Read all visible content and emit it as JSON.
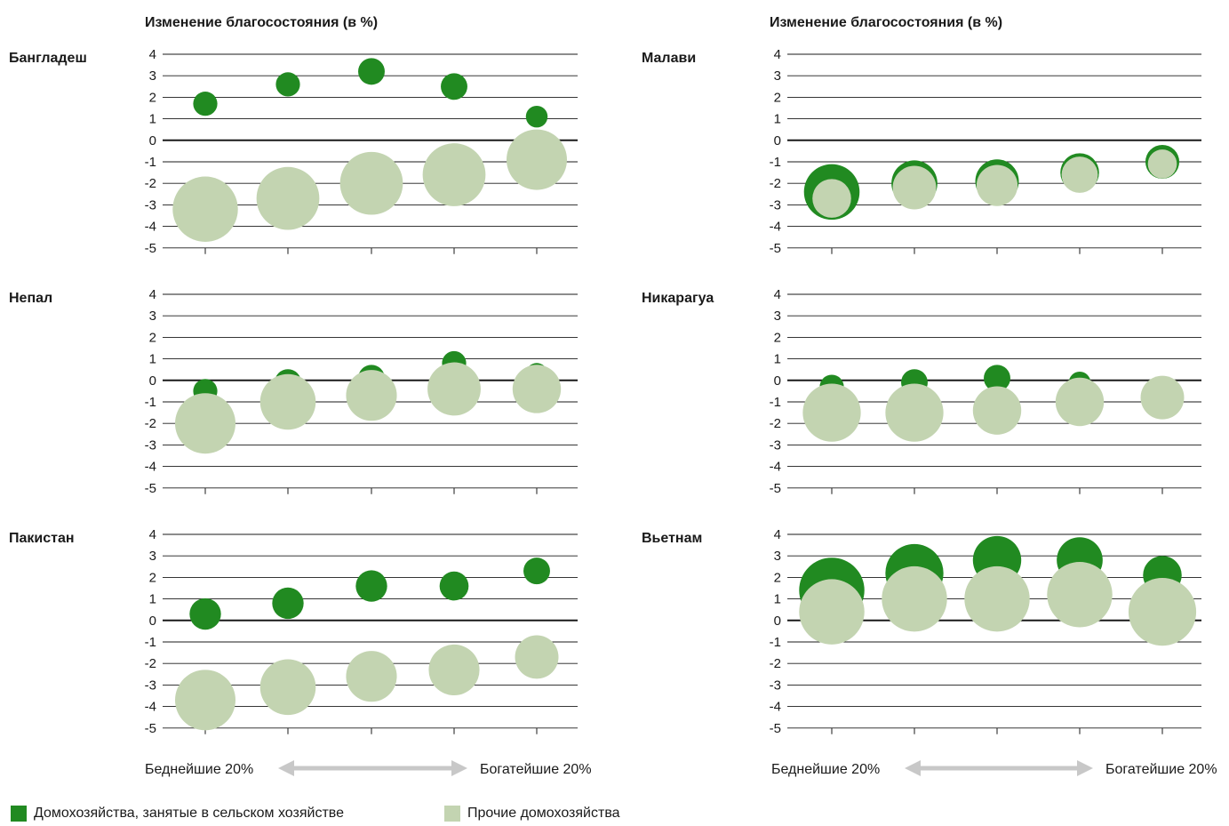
{
  "chart_data": {
    "type": "scatter",
    "column_titles": [
      "Изменение благосостояния (в %)",
      "Изменение благосостояния (в %)"
    ],
    "y_ticks": [
      "4",
      "3",
      "2",
      "1",
      "0",
      "-1",
      "-2",
      "-3",
      "-4",
      "-5"
    ],
    "ylim": [
      -5,
      4
    ],
    "x_categories": [
      "Беднейшие 20%",
      "",
      "",
      "",
      "Богатейшие 20%"
    ],
    "x_axis_left_label": "Беднейшие 20%",
    "x_axis_right_label": "Богатейшие 20%",
    "series_names": [
      "Домохозяйства, занятые в сельском хозяйстве",
      "Прочие домохозяйства"
    ],
    "colors": {
      "agri": "#218a21",
      "other": "#c3d4b1",
      "grid": "#1a1a1a",
      "arrow": "#c8c8c8"
    },
    "legend_position": "bottom-left",
    "panels": [
      {
        "country": "Бангладеш",
        "agri": [
          {
            "y": 1.7,
            "size": 1.0
          },
          {
            "y": 2.6,
            "size": 1.0
          },
          {
            "y": 3.2,
            "size": 1.1
          },
          {
            "y": 2.5,
            "size": 1.1
          },
          {
            "y": 1.1,
            "size": 0.9
          }
        ],
        "other": [
          {
            "y": -3.2,
            "size": 2.7
          },
          {
            "y": -2.7,
            "size": 2.6
          },
          {
            "y": -2.0,
            "size": 2.6
          },
          {
            "y": -1.6,
            "size": 2.6
          },
          {
            "y": -0.9,
            "size": 2.5
          }
        ]
      },
      {
        "country": "Малави",
        "agri": [
          {
            "y": -2.4,
            "size": 2.3
          },
          {
            "y": -2.0,
            "size": 1.9
          },
          {
            "y": -1.9,
            "size": 1.8
          },
          {
            "y": -1.5,
            "size": 1.6
          },
          {
            "y": -1.0,
            "size": 1.4
          }
        ],
        "other": [
          {
            "y": -2.7,
            "size": 1.6
          },
          {
            "y": -2.2,
            "size": 1.8
          },
          {
            "y": -2.1,
            "size": 1.7
          },
          {
            "y": -1.6,
            "size": 1.5
          },
          {
            "y": -1.1,
            "size": 1.2
          }
        ]
      },
      {
        "country": "Непал",
        "agri": [
          {
            "y": -0.5,
            "size": 1.0
          },
          {
            "y": -0.1,
            "size": 1.1
          },
          {
            "y": 0.1,
            "size": 1.1
          },
          {
            "y": 0.8,
            "size": 1.0
          },
          {
            "y": 0.3,
            "size": 0.9
          }
        ],
        "other": [
          {
            "y": -2.0,
            "size": 2.5
          },
          {
            "y": -1.0,
            "size": 2.3
          },
          {
            "y": -0.7,
            "size": 2.1
          },
          {
            "y": -0.4,
            "size": 2.2
          },
          {
            "y": -0.4,
            "size": 2.0
          }
        ]
      },
      {
        "country": "Никарагуа",
        "agri": [
          {
            "y": -0.3,
            "size": 1.0
          },
          {
            "y": -0.1,
            "size": 1.1
          },
          {
            "y": 0.1,
            "size": 1.1
          },
          {
            "y": -0.1,
            "size": 0.9
          },
          {
            "y": -0.3,
            "size": 0.7
          }
        ],
        "other": [
          {
            "y": -1.5,
            "size": 2.4
          },
          {
            "y": -1.5,
            "size": 2.4
          },
          {
            "y": -1.4,
            "size": 2.0
          },
          {
            "y": -1.0,
            "size": 2.0
          },
          {
            "y": -0.8,
            "size": 1.8
          }
        ]
      },
      {
        "country": "Пакистан",
        "agri": [
          {
            "y": 0.3,
            "size": 1.3
          },
          {
            "y": 0.8,
            "size": 1.3
          },
          {
            "y": 1.6,
            "size": 1.3
          },
          {
            "y": 1.6,
            "size": 1.2
          },
          {
            "y": 2.3,
            "size": 1.1
          }
        ],
        "other": [
          {
            "y": -3.7,
            "size": 2.5
          },
          {
            "y": -3.1,
            "size": 2.3
          },
          {
            "y": -2.6,
            "size": 2.1
          },
          {
            "y": -2.3,
            "size": 2.1
          },
          {
            "y": -1.7,
            "size": 1.8
          }
        ]
      },
      {
        "country": "Вьетнам",
        "agri": [
          {
            "y": 1.4,
            "size": 2.7
          },
          {
            "y": 2.2,
            "size": 2.4
          },
          {
            "y": 2.8,
            "size": 2.0
          },
          {
            "y": 2.8,
            "size": 1.9
          },
          {
            "y": 2.1,
            "size": 1.6
          }
        ],
        "other": [
          {
            "y": 0.4,
            "size": 2.7
          },
          {
            "y": 1.0,
            "size": 2.7
          },
          {
            "y": 1.0,
            "size": 2.7
          },
          {
            "y": 1.2,
            "size": 2.7
          },
          {
            "y": 0.4,
            "size": 2.8
          }
        ]
      }
    ]
  }
}
